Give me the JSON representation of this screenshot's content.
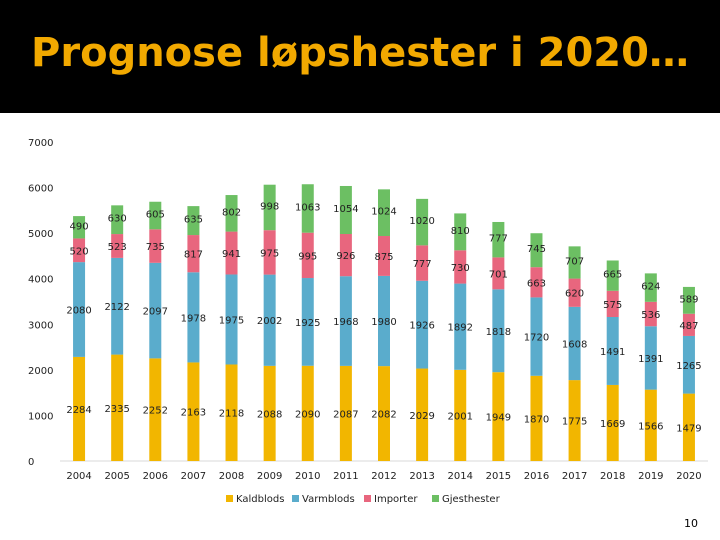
{
  "slide": {
    "title": "Prognose løpshester i 2020…",
    "page_number": "10"
  },
  "colors": {
    "title_bar": "#000000",
    "title_text": "#f2a900",
    "Kaldblods": "#f2b600",
    "Varmblods": "#5aaccc",
    "Importer": "#e8667e",
    "Gjesthester": "#6cbf63"
  },
  "chart_data": {
    "type": "bar",
    "stacked": true,
    "title": "",
    "xlabel": "",
    "ylabel": "",
    "ylim": [
      0,
      7000
    ],
    "yticks": [
      "0",
      "1000",
      "2000",
      "3000",
      "4000",
      "5000",
      "6000",
      "7000"
    ],
    "categories": [
      "2004",
      "2005",
      "2006",
      "2007",
      "2008",
      "2009",
      "2010",
      "2011",
      "2012",
      "2013",
      "2014",
      "2015",
      "2016",
      "2017",
      "2018",
      "2019",
      "2020"
    ],
    "series": [
      {
        "name": "Kaldblods",
        "values": [
          2284,
          2335,
          2252,
          2163,
          2118,
          2088,
          2090,
          2087,
          2082,
          2029,
          2001,
          1949,
          1870,
          1775,
          1669,
          1566,
          1479
        ]
      },
      {
        "name": "Varmblods",
        "values": [
          2080,
          2122,
          2097,
          1978,
          1975,
          2002,
          1925,
          1968,
          1980,
          1926,
          1892,
          1818,
          1720,
          1608,
          1491,
          1391,
          1265
        ]
      },
      {
        "name": "Importer",
        "values": [
          520,
          523,
          735,
          817,
          941,
          975,
          995,
          926,
          875,
          777,
          730,
          701,
          663,
          620,
          575,
          536,
          487
        ]
      },
      {
        "name": "Gjesthester",
        "values": [
          490,
          630,
          605,
          635,
          802,
          998,
          1063,
          1054,
          1024,
          1020,
          810,
          777,
          745,
          707,
          665,
          624,
          589
        ]
      }
    ],
    "legend_position": "bottom",
    "grid": false
  }
}
